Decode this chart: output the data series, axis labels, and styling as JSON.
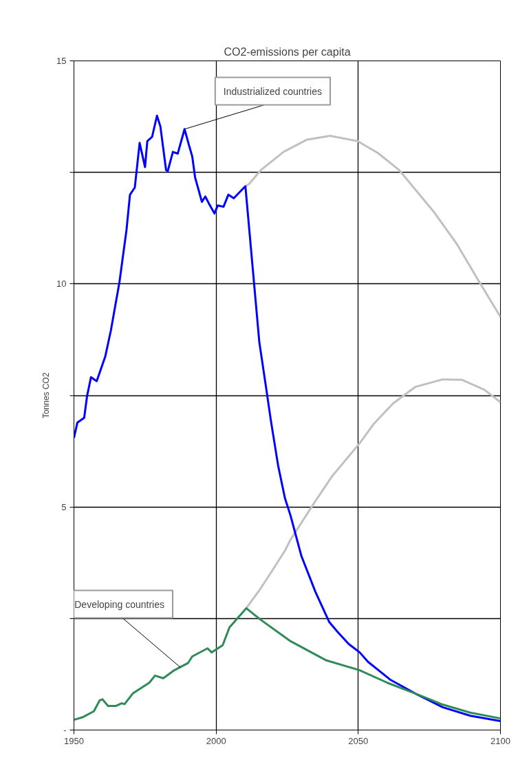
{
  "chart_data": {
    "type": "line",
    "title": "CO2-emissions per capita",
    "ylabel": "Tonnes CO2",
    "xlim": [
      1950,
      2100
    ],
    "ylim": [
      0,
      15
    ],
    "xticks": [
      1950,
      2000,
      2050,
      2100
    ],
    "yticks": [
      {
        "value": 0,
        "label": "-"
      },
      {
        "value": 2.5,
        "label": null
      },
      5,
      {
        "value": 7.5,
        "label": null
      },
      10,
      {
        "value": 12.5,
        "label": null
      },
      15
    ],
    "grid": true,
    "line_style": "solid",
    "marker": "none",
    "series": [
      {
        "color": "#c0c0c0",
        "x": [
          2010.3,
          2011.6,
          2015.7,
          2023.7,
          2031.8,
          2040,
          2049.8,
          2057,
          2064.4,
          2076.5,
          2084.5,
          2092.6,
          2100
        ],
        "values": [
          12.19,
          12.24,
          12.55,
          12.96,
          13.23,
          13.32,
          13.2,
          12.93,
          12.55,
          11.62,
          10.91,
          10.04,
          9.26
        ]
      },
      {
        "color": "#c0c0c0",
        "x": [
          2010.6,
          2015.5,
          2019.3,
          2024.2,
          2026.2,
          2034.9,
          2040.8,
          2050.5,
          2055.4,
          2062.2,
          2070,
          2079.7,
          2086.5,
          2094.3,
          2100
        ],
        "values": [
          2.73,
          3.16,
          3.53,
          4.02,
          4.27,
          5.13,
          5.69,
          6.43,
          6.86,
          7.32,
          7.69,
          7.86,
          7.85,
          7.63,
          7.35
        ]
      },
      {
        "color": "#0000ff",
        "x": [
          1950,
          1951.2,
          1953.6,
          1954.6,
          1956,
          1958,
          1961,
          1963,
          1966,
          1968.5,
          1969.7,
          1971.4,
          1973.1,
          1975,
          1975.8,
          1977.5,
          1979.2,
          1980.4,
          1982.4,
          1983,
          1984.8,
          1986.5,
          1988.9,
          1990.4,
          1991.6,
          1992.6,
          1995,
          1996.2,
          1997.4,
          1999.4,
          2000.6,
          2002.6,
          2004.3,
          2006.2,
          2010.3,
          2012.3,
          2015.2,
          2017.4,
          2019.3,
          2021.8,
          2024.2,
          2026.2,
          2030,
          2034.9,
          2039.8,
          2042.7,
          2046.6,
          2050.5,
          2053.4,
          2061.2,
          2070,
          2079.7,
          2089.4,
          2100
        ],
        "values": [
          6.55,
          6.89,
          7.0,
          7.48,
          7.91,
          7.82,
          8.37,
          8.96,
          10.04,
          11.22,
          12.0,
          12.16,
          13.16,
          12.62,
          13.2,
          13.3,
          13.77,
          13.53,
          12.55,
          12.53,
          12.96,
          12.92,
          13.47,
          13.12,
          12.86,
          12.39,
          11.84,
          11.96,
          11.81,
          11.58,
          11.76,
          11.73,
          12.0,
          11.92,
          12.19,
          10.76,
          8.69,
          7.75,
          6.92,
          5.93,
          5.2,
          4.8,
          3.9,
          3.1,
          2.42,
          2.2,
          1.93,
          1.74,
          1.53,
          1.13,
          0.82,
          0.51,
          0.32,
          0.2
        ]
      },
      {
        "color": "#2e8b57",
        "x": [
          1950,
          1953.2,
          1957,
          1959,
          1960,
          1962,
          1964.8,
          1966.8,
          1967.8,
          1970.7,
          1973.6,
          1976.5,
          1978.5,
          1981.4,
          1985.3,
          1990.1,
          1991.6,
          1997,
          1998.4,
          2002.3,
          2004.7,
          2010.6,
          2015.5,
          2026.2,
          2038.8,
          2050.5,
          2060.2,
          2070,
          2079.7,
          2089.4,
          2100
        ],
        "values": [
          0.23,
          0.29,
          0.42,
          0.66,
          0.69,
          0.54,
          0.54,
          0.6,
          0.58,
          0.82,
          0.94,
          1.06,
          1.22,
          1.16,
          1.34,
          1.5,
          1.65,
          1.83,
          1.74,
          1.9,
          2.3,
          2.73,
          2.48,
          1.99,
          1.56,
          1.34,
          1.06,
          0.82,
          0.57,
          0.39,
          0.26
        ]
      }
    ],
    "annotations": [
      {
        "text": "Industrialized countries",
        "x": 1988.9,
        "y": 13.47
      },
      {
        "text": "Developing countries",
        "x": 1987.5,
        "y": 1.4
      }
    ]
  }
}
